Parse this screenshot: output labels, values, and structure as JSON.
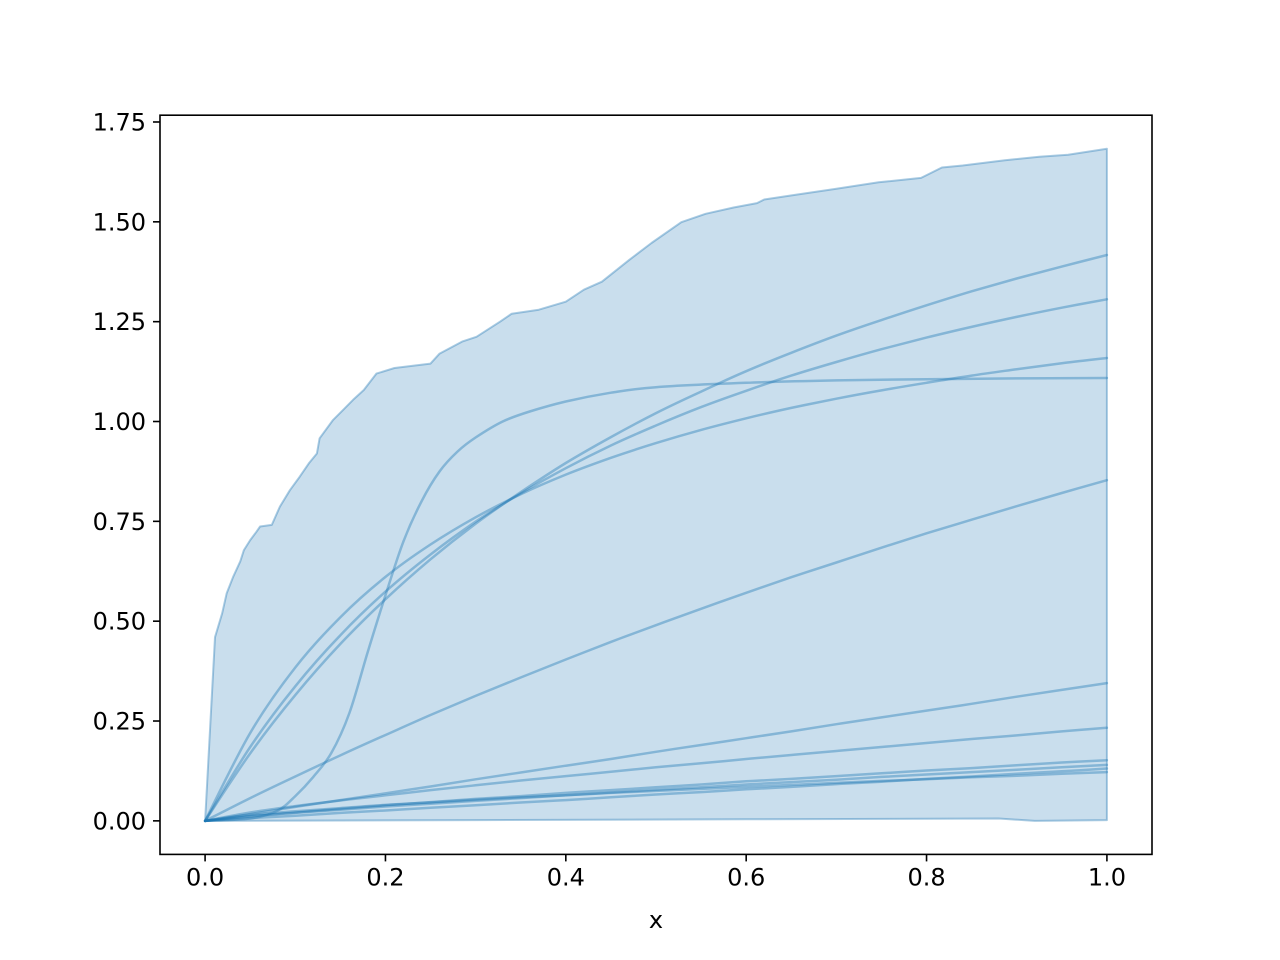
{
  "chart_data": {
    "type": "line",
    "title": "",
    "xlabel": "x",
    "ylabel": "",
    "grid": false,
    "legend": null,
    "xlim": [
      -0.05,
      1.05
    ],
    "ylim": [
      -0.084,
      1.767
    ],
    "x_ticks": [
      "0.0",
      "0.2",
      "0.4",
      "0.6",
      "0.8",
      "1.0"
    ],
    "x_tick_values": [
      0.0,
      0.2,
      0.4,
      0.6,
      0.8,
      1.0
    ],
    "y_ticks": [
      "0.00",
      "0.25",
      "0.50",
      "0.75",
      "1.00",
      "1.25",
      "1.50",
      "1.75"
    ],
    "y_tick_values": [
      0.0,
      0.25,
      0.5,
      0.75,
      1.0,
      1.25,
      1.5,
      1.75
    ],
    "colors": {
      "base": "#1f77b4",
      "fill_alpha": 0.24,
      "band_edge_alpha": 0.38,
      "line_alpha": 0.4,
      "axis": "#000000"
    },
    "band": {
      "name": "envelope-band",
      "upper_points": [
        [
          0.0,
          0.0
        ],
        [
          0.011,
          0.46
        ],
        [
          0.019,
          0.52
        ],
        [
          0.024,
          0.57
        ],
        [
          0.031,
          0.61
        ],
        [
          0.039,
          0.65
        ],
        [
          0.043,
          0.678
        ],
        [
          0.05,
          0.703
        ],
        [
          0.057,
          0.724
        ],
        [
          0.061,
          0.737
        ],
        [
          0.074,
          0.741
        ],
        [
          0.083,
          0.787
        ],
        [
          0.094,
          0.828
        ],
        [
          0.105,
          0.862
        ],
        [
          0.115,
          0.895
        ],
        [
          0.124,
          0.92
        ],
        [
          0.127,
          0.958
        ],
        [
          0.142,
          1.004
        ],
        [
          0.153,
          1.029
        ],
        [
          0.164,
          1.054
        ],
        [
          0.176,
          1.079
        ],
        [
          0.19,
          1.12
        ],
        [
          0.21,
          1.134
        ],
        [
          0.25,
          1.145
        ],
        [
          0.26,
          1.17
        ],
        [
          0.285,
          1.2
        ],
        [
          0.301,
          1.212
        ],
        [
          0.327,
          1.25
        ],
        [
          0.34,
          1.27
        ],
        [
          0.37,
          1.28
        ],
        [
          0.4,
          1.3
        ],
        [
          0.42,
          1.33
        ],
        [
          0.44,
          1.35
        ],
        [
          0.47,
          1.404
        ],
        [
          0.495,
          1.447
        ],
        [
          0.528,
          1.499
        ],
        [
          0.555,
          1.52
        ],
        [
          0.586,
          1.536
        ],
        [
          0.612,
          1.547
        ],
        [
          0.62,
          1.556
        ],
        [
          0.655,
          1.568
        ],
        [
          0.7,
          1.583
        ],
        [
          0.747,
          1.599
        ],
        [
          0.794,
          1.61
        ],
        [
          0.817,
          1.636
        ],
        [
          0.84,
          1.641
        ],
        [
          0.887,
          1.654
        ],
        [
          0.925,
          1.663
        ],
        [
          0.957,
          1.668
        ],
        [
          1.0,
          1.683
        ]
      ],
      "lower_points": [
        [
          1.0,
          0.002
        ],
        [
          0.92,
          0.0
        ],
        [
          0.88,
          0.006
        ],
        [
          0.6,
          0.004
        ],
        [
          0.3,
          0.002
        ],
        [
          0.0,
          0.0
        ]
      ]
    },
    "x_grid": [
      0,
      0.05,
      0.1,
      0.15,
      0.2,
      0.25,
      0.3,
      0.35,
      0.4,
      0.45,
      0.5,
      0.55,
      0.6,
      0.65,
      0.7,
      0.75,
      0.8,
      0.85,
      0.9,
      0.95,
      1.0
    ],
    "series": [
      {
        "name": "sample-path-1",
        "end_value": 1.417,
        "y": [
          0,
          0.169,
          0.315,
          0.443,
          0.555,
          0.655,
          0.744,
          0.823,
          0.896,
          0.961,
          1.021,
          1.075,
          1.126,
          1.172,
          1.215,
          1.254,
          1.291,
          1.326,
          1.358,
          1.388,
          1.417
        ]
      },
      {
        "name": "sample-path-2",
        "end_value": 1.306,
        "y": [
          0,
          0.185,
          0.337,
          0.465,
          0.574,
          0.667,
          0.749,
          0.82,
          0.883,
          0.94,
          0.99,
          1.036,
          1.077,
          1.115,
          1.149,
          1.181,
          1.21,
          1.237,
          1.262,
          1.285,
          1.306
        ]
      },
      {
        "name": "sample-path-3",
        "end_value": 1.159,
        "y": [
          0,
          0.22,
          0.384,
          0.51,
          0.611,
          0.692,
          0.76,
          0.818,
          0.867,
          0.909,
          0.946,
          0.979,
          1.008,
          1.034,
          1.057,
          1.078,
          1.097,
          1.115,
          1.131,
          1.146,
          1.159
        ]
      },
      {
        "name": "sample-path-4",
        "end_value": 1.109,
        "x": [
          0,
          0.05,
          0.08,
          0.1,
          0.12,
          0.14,
          0.16,
          0.18,
          0.2,
          0.22,
          0.24,
          0.26,
          0.28,
          0.3,
          0.33,
          0.36,
          0.4,
          0.45,
          0.5,
          0.6,
          0.7,
          0.8,
          0.9,
          1.0
        ],
        "y": [
          0,
          0.006,
          0.025,
          0.062,
          0.11,
          0.17,
          0.27,
          0.42,
          0.565,
          0.7,
          0.8,
          0.875,
          0.925,
          0.96,
          1.0,
          1.025,
          1.05,
          1.072,
          1.086,
          1.097,
          1.103,
          1.106,
          1.108,
          1.109
        ]
      },
      {
        "name": "sample-path-5",
        "end_value": 0.853,
        "y": [
          0,
          0.057,
          0.111,
          0.164,
          0.215,
          0.265,
          0.313,
          0.359,
          0.404,
          0.448,
          0.49,
          0.531,
          0.571,
          0.61,
          0.647,
          0.684,
          0.72,
          0.754,
          0.788,
          0.821,
          0.853
        ]
      },
      {
        "name": "sample-path-6",
        "end_value": 0.345,
        "y": [
          0,
          0.017,
          0.035,
          0.052,
          0.069,
          0.086,
          0.104,
          0.121,
          0.138,
          0.155,
          0.173,
          0.19,
          0.207,
          0.224,
          0.242,
          0.259,
          0.276,
          0.293,
          0.311,
          0.328,
          0.345
        ]
      },
      {
        "name": "sample-path-7",
        "end_value": 0.233,
        "y": [
          0,
          0.021,
          0.037,
          0.051,
          0.064,
          0.077,
          0.089,
          0.101,
          0.112,
          0.123,
          0.134,
          0.144,
          0.155,
          0.165,
          0.175,
          0.185,
          0.195,
          0.205,
          0.214,
          0.224,
          0.233
        ]
      },
      {
        "name": "sample-path-8",
        "end_value": 0.152,
        "y": [
          0,
          0.012,
          0.021,
          0.03,
          0.039,
          0.047,
          0.055,
          0.062,
          0.07,
          0.077,
          0.084,
          0.091,
          0.099,
          0.105,
          0.112,
          0.119,
          0.126,
          0.132,
          0.139,
          0.146,
          0.152
        ]
      },
      {
        "name": "sample-path-9",
        "end_value": 0.14,
        "y": [
          0,
          0.011,
          0.02,
          0.028,
          0.036,
          0.043,
          0.05,
          0.057,
          0.064,
          0.071,
          0.078,
          0.084,
          0.091,
          0.097,
          0.103,
          0.11,
          0.116,
          0.122,
          0.128,
          0.134,
          0.14
        ]
      },
      {
        "name": "sample-path-10",
        "end_value": 0.131,
        "y": [
          0,
          0.007,
          0.013,
          0.02,
          0.026,
          0.033,
          0.039,
          0.046,
          0.052,
          0.059,
          0.066,
          0.072,
          0.079,
          0.085,
          0.092,
          0.098,
          0.105,
          0.111,
          0.118,
          0.124,
          0.131
        ]
      },
      {
        "name": "sample-path-11",
        "end_value": 0.122,
        "y": [
          0,
          0.015,
          0.024,
          0.032,
          0.04,
          0.046,
          0.053,
          0.059,
          0.064,
          0.07,
          0.075,
          0.08,
          0.085,
          0.09,
          0.095,
          0.1,
          0.104,
          0.109,
          0.113,
          0.118,
          0.122
        ]
      }
    ]
  }
}
